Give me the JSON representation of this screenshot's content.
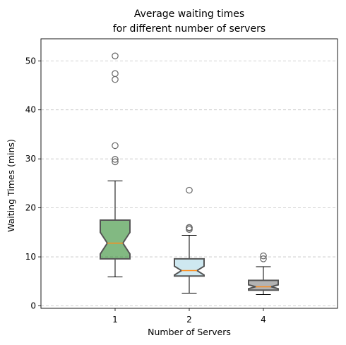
{
  "chart_data": {
    "type": "box",
    "title_lines": [
      "Average waiting times",
      "for different number of servers"
    ],
    "xlabel": "Number of Servers",
    "ylabel": "Waiting Times (mins)",
    "categories": [
      "1",
      "2",
      "4"
    ],
    "ylim": [
      -0.5,
      54.5
    ],
    "yticks": [
      0,
      10,
      20,
      30,
      40,
      50
    ],
    "grid": "y-dashed",
    "notched": true,
    "boxes": [
      {
        "category": "1",
        "color": "#2e8b2e",
        "whisker_low": 5.9,
        "q1": 9.6,
        "median": 12.8,
        "q3": 17.5,
        "whisker_high": 25.5,
        "notch_low": 10.6,
        "notch_high": 15.0,
        "outliers": [
          29.4,
          29.9,
          32.7,
          46.2,
          47.4,
          51.0
        ]
      },
      {
        "category": "2",
        "color": "#add8e6",
        "whisker_low": 2.6,
        "q1": 6.1,
        "median": 7.2,
        "q3": 9.6,
        "whisker_high": 14.4,
        "notch_low": 6.3,
        "notch_high": 8.1,
        "outliers": [
          15.6,
          15.9,
          16.0,
          23.6
        ]
      },
      {
        "category": "4",
        "color": "#808080",
        "whisker_low": 2.3,
        "q1": 3.2,
        "median": 3.9,
        "q3": 5.2,
        "whisker_high": 8.0,
        "notch_low": 3.5,
        "notch_high": 4.3,
        "outliers": [
          9.6,
          10.2
        ]
      }
    ]
  }
}
